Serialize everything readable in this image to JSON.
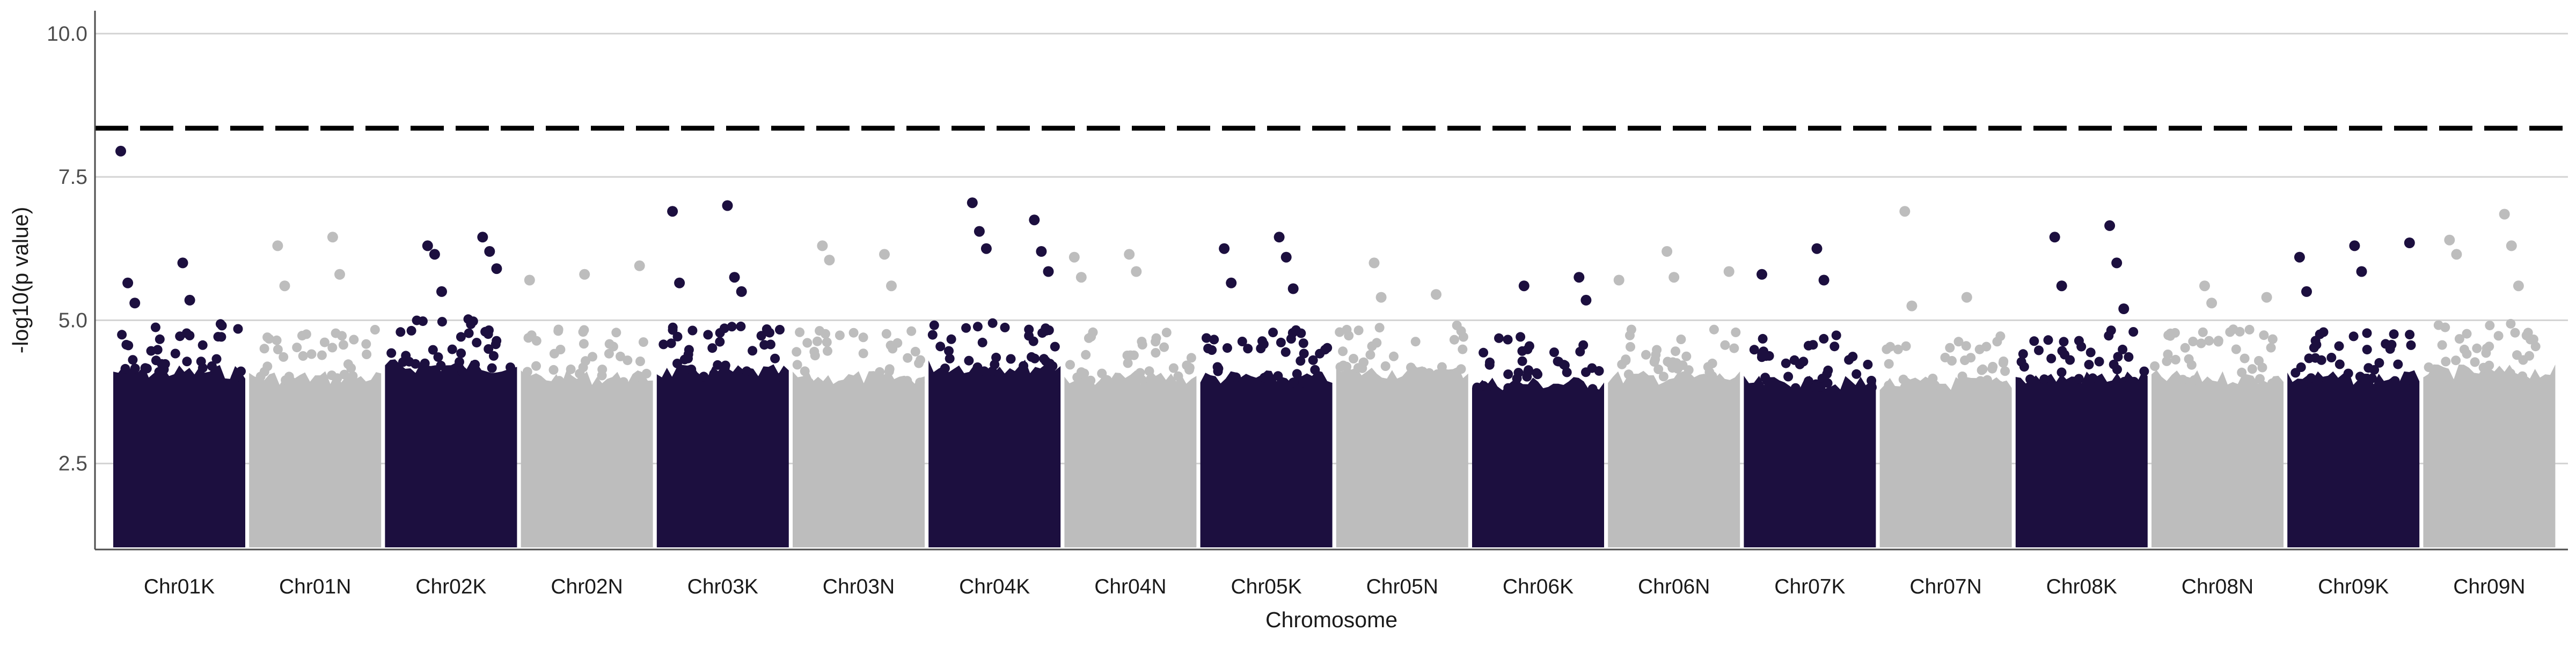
{
  "chart_data": {
    "type": "scatter",
    "title": "",
    "xlabel": "Chromosome",
    "ylabel": "-log10(p value)",
    "ylim": [
      1.0,
      10.4
    ],
    "y_ticks": [
      "2.5",
      "5.0",
      "7.5",
      "10.0"
    ],
    "y_tick_values": [
      2.5,
      5.0,
      7.5,
      10.0
    ],
    "grid": "horizontal major gridlines",
    "legend": "none",
    "threshold": 8.35,
    "threshold_style": "dashed black line",
    "colors": {
      "K": "#1c0f3f",
      "N": "#bdbdbd",
      "grid": "#d3d3d3",
      "threshold": "#000000"
    },
    "categories": [
      "Chr01K",
      "Chr01N",
      "Chr02K",
      "Chr02N",
      "Chr03K",
      "Chr03N",
      "Chr04K",
      "Chr04N",
      "Chr05K",
      "Chr05N",
      "Chr06K",
      "Chr06N",
      "Chr07K",
      "Chr07N",
      "Chr08K",
      "Chr08N",
      "Chr09K",
      "Chr09N"
    ],
    "dense_band": [
      {
        "chromosome": "Chr01K",
        "group": "K",
        "max": 4.1
      },
      {
        "chromosome": "Chr01N",
        "group": "N",
        "max": 4.0
      },
      {
        "chromosome": "Chr02K",
        "group": "K",
        "max": 4.2
      },
      {
        "chromosome": "Chr02N",
        "group": "N",
        "max": 4.0
      },
      {
        "chromosome": "Chr03K",
        "group": "K",
        "max": 4.1
      },
      {
        "chromosome": "Chr03N",
        "group": "N",
        "max": 4.0
      },
      {
        "chromosome": "Chr04K",
        "group": "K",
        "max": 4.2
      },
      {
        "chromosome": "Chr04N",
        "group": "N",
        "max": 4.0
      },
      {
        "chromosome": "Chr05K",
        "group": "K",
        "max": 4.0
      },
      {
        "chromosome": "Chr05N",
        "group": "N",
        "max": 4.1
      },
      {
        "chromosome": "Chr06K",
        "group": "K",
        "max": 3.9
      },
      {
        "chromosome": "Chr06N",
        "group": "N",
        "max": 4.0
      },
      {
        "chromosome": "Chr07K",
        "group": "K",
        "max": 3.9
      },
      {
        "chromosome": "Chr07N",
        "group": "N",
        "max": 3.9
      },
      {
        "chromosome": "Chr08K",
        "group": "K",
        "max": 4.0
      },
      {
        "chromosome": "Chr08N",
        "group": "N",
        "max": 4.0
      },
      {
        "chromosome": "Chr09K",
        "group": "K",
        "max": 4.0
      },
      {
        "chromosome": "Chr09N",
        "group": "N",
        "max": 4.1
      }
    ],
    "peak_points": [
      {
        "chromosome": "Chr01K",
        "y": 7.95
      },
      {
        "chromosome": "Chr01K",
        "y": 6.0
      },
      {
        "chromosome": "Chr01K",
        "y": 5.65
      },
      {
        "chromosome": "Chr01K",
        "y": 5.35
      },
      {
        "chromosome": "Chr01K",
        "y": 5.3
      },
      {
        "chromosome": "Chr01N",
        "y": 6.45
      },
      {
        "chromosome": "Chr01N",
        "y": 6.3
      },
      {
        "chromosome": "Chr01N",
        "y": 5.8
      },
      {
        "chromosome": "Chr01N",
        "y": 5.6
      },
      {
        "chromosome": "Chr02K",
        "y": 6.45
      },
      {
        "chromosome": "Chr02K",
        "y": 6.3
      },
      {
        "chromosome": "Chr02K",
        "y": 6.2
      },
      {
        "chromosome": "Chr02K",
        "y": 6.15
      },
      {
        "chromosome": "Chr02K",
        "y": 5.9
      },
      {
        "chromosome": "Chr02K",
        "y": 5.5
      },
      {
        "chromosome": "Chr02N",
        "y": 5.95
      },
      {
        "chromosome": "Chr02N",
        "y": 5.8
      },
      {
        "chromosome": "Chr02N",
        "y": 5.7
      },
      {
        "chromosome": "Chr03K",
        "y": 7.0
      },
      {
        "chromosome": "Chr03K",
        "y": 6.9
      },
      {
        "chromosome": "Chr03K",
        "y": 5.75
      },
      {
        "chromosome": "Chr03K",
        "y": 5.65
      },
      {
        "chromosome": "Chr03K",
        "y": 5.5
      },
      {
        "chromosome": "Chr03N",
        "y": 6.3
      },
      {
        "chromosome": "Chr03N",
        "y": 6.15
      },
      {
        "chromosome": "Chr03N",
        "y": 6.05
      },
      {
        "chromosome": "Chr03N",
        "y": 5.6
      },
      {
        "chromosome": "Chr04K",
        "y": 7.05
      },
      {
        "chromosome": "Chr04K",
        "y": 6.75
      },
      {
        "chromosome": "Chr04K",
        "y": 6.55
      },
      {
        "chromosome": "Chr04K",
        "y": 6.2
      },
      {
        "chromosome": "Chr04K",
        "y": 6.25
      },
      {
        "chromosome": "Chr04K",
        "y": 5.85
      },
      {
        "chromosome": "Chr04N",
        "y": 6.15
      },
      {
        "chromosome": "Chr04N",
        "y": 6.1
      },
      {
        "chromosome": "Chr04N",
        "y": 5.85
      },
      {
        "chromosome": "Chr04N",
        "y": 5.75
      },
      {
        "chromosome": "Chr05K",
        "y": 6.45
      },
      {
        "chromosome": "Chr05K",
        "y": 6.25
      },
      {
        "chromosome": "Chr05K",
        "y": 6.1
      },
      {
        "chromosome": "Chr05K",
        "y": 5.65
      },
      {
        "chromosome": "Chr05K",
        "y": 5.55
      },
      {
        "chromosome": "Chr05N",
        "y": 6.0
      },
      {
        "chromosome": "Chr05N",
        "y": 5.45
      },
      {
        "chromosome": "Chr05N",
        "y": 5.4
      },
      {
        "chromosome": "Chr06K",
        "y": 5.75
      },
      {
        "chromosome": "Chr06K",
        "y": 5.6
      },
      {
        "chromosome": "Chr06K",
        "y": 5.35
      },
      {
        "chromosome": "Chr06N",
        "y": 6.2
      },
      {
        "chromosome": "Chr06N",
        "y": 5.85
      },
      {
        "chromosome": "Chr06N",
        "y": 5.75
      },
      {
        "chromosome": "Chr06N",
        "y": 5.7
      },
      {
        "chromosome": "Chr07K",
        "y": 6.25
      },
      {
        "chromosome": "Chr07K",
        "y": 5.8
      },
      {
        "chromosome": "Chr07K",
        "y": 5.7
      },
      {
        "chromosome": "Chr07N",
        "y": 6.9
      },
      {
        "chromosome": "Chr07N",
        "y": 5.4
      },
      {
        "chromosome": "Chr07N",
        "y": 5.25
      },
      {
        "chromosome": "Chr08K",
        "y": 6.65
      },
      {
        "chromosome": "Chr08K",
        "y": 6.45
      },
      {
        "chromosome": "Chr08K",
        "y": 6.0
      },
      {
        "chromosome": "Chr08K",
        "y": 5.6
      },
      {
        "chromosome": "Chr08K",
        "y": 5.2
      },
      {
        "chromosome": "Chr08N",
        "y": 5.6
      },
      {
        "chromosome": "Chr08N",
        "y": 5.4
      },
      {
        "chromosome": "Chr08N",
        "y": 5.3
      },
      {
        "chromosome": "Chr09K",
        "y": 6.35
      },
      {
        "chromosome": "Chr09K",
        "y": 6.3
      },
      {
        "chromosome": "Chr09K",
        "y": 6.1
      },
      {
        "chromosome": "Chr09K",
        "y": 5.85
      },
      {
        "chromosome": "Chr09K",
        "y": 5.5
      },
      {
        "chromosome": "Chr09N",
        "y": 6.85
      },
      {
        "chromosome": "Chr09N",
        "y": 6.4
      },
      {
        "chromosome": "Chr09N",
        "y": 6.3
      },
      {
        "chromosome": "Chr09N",
        "y": 6.15
      },
      {
        "chromosome": "Chr09N",
        "y": 5.6
      }
    ]
  }
}
